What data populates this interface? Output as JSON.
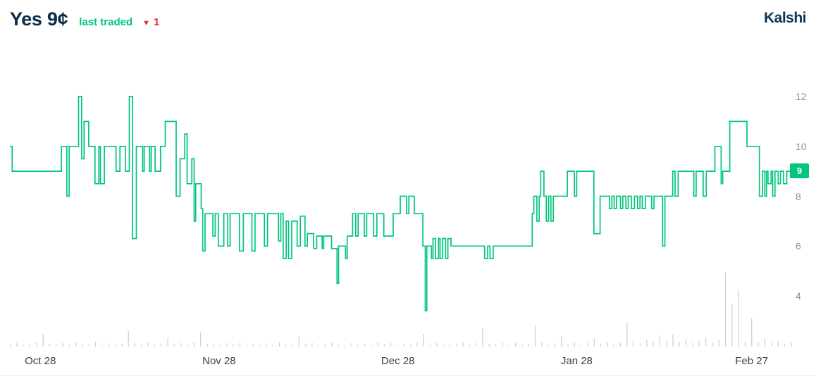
{
  "header": {
    "title": "Yes 9¢",
    "subtitle": "last traded",
    "change_icon": "▼",
    "change_value": "1",
    "logo": "Kalshi"
  },
  "colors": {
    "accent_green": "#00c57b",
    "title_navy": "#0b2b4b",
    "logo_navy": "#0a3650",
    "change_red": "#d92f2f",
    "volume_gray": "#cdd2d9",
    "y_tick_gray": "#8d939c",
    "x_tick_gray": "#3c4043",
    "divider_gray": "#e8eaed",
    "badge_text": "#ffffff"
  },
  "chart_data": {
    "type": "line",
    "style": "step",
    "unit": "cents",
    "series_name": "Yes price",
    "last_price": 9,
    "y_ticks": [
      12,
      10,
      8,
      6,
      4
    ],
    "y_range": [
      3,
      13
    ],
    "grid": "off",
    "legend": "none",
    "x_ticks": [
      {
        "t": 0.039,
        "label": "Oct 28"
      },
      {
        "t": 0.268,
        "label": "Nov 28"
      },
      {
        "t": 0.497,
        "label": "Dec 28"
      },
      {
        "t": 0.726,
        "label": "Jan 28"
      },
      {
        "t": 0.95,
        "label": "Feb 27"
      }
    ],
    "points": [
      [
        0.0,
        10
      ],
      [
        0.003,
        9
      ],
      [
        0.064,
        9
      ],
      [
        0.066,
        10
      ],
      [
        0.071,
        10
      ],
      [
        0.073,
        8
      ],
      [
        0.076,
        10
      ],
      [
        0.087,
        10
      ],
      [
        0.088,
        12
      ],
      [
        0.091,
        12
      ],
      [
        0.092,
        9.5
      ],
      [
        0.095,
        11
      ],
      [
        0.099,
        11
      ],
      [
        0.101,
        10
      ],
      [
        0.107,
        10
      ],
      [
        0.109,
        8.5
      ],
      [
        0.114,
        10
      ],
      [
        0.116,
        8.5
      ],
      [
        0.121,
        10
      ],
      [
        0.136,
        9
      ],
      [
        0.141,
        10
      ],
      [
        0.148,
        9
      ],
      [
        0.153,
        12
      ],
      [
        0.155,
        12
      ],
      [
        0.157,
        6.3
      ],
      [
        0.161,
        6.3
      ],
      [
        0.162,
        10
      ],
      [
        0.168,
        10
      ],
      [
        0.17,
        9
      ],
      [
        0.172,
        10
      ],
      [
        0.177,
        10
      ],
      [
        0.179,
        9
      ],
      [
        0.181,
        10
      ],
      [
        0.186,
        9
      ],
      [
        0.193,
        10
      ],
      [
        0.199,
        11
      ],
      [
        0.211,
        11
      ],
      [
        0.213,
        8
      ],
      [
        0.218,
        9.5
      ],
      [
        0.224,
        10.5
      ],
      [
        0.227,
        8.5
      ],
      [
        0.233,
        9.5
      ],
      [
        0.236,
        7
      ],
      [
        0.238,
        8.5
      ],
      [
        0.245,
        7.5
      ],
      [
        0.247,
        5.8
      ],
      [
        0.25,
        7.3
      ],
      [
        0.258,
        7.3
      ],
      [
        0.26,
        6.4
      ],
      [
        0.263,
        7.3
      ],
      [
        0.267,
        6
      ],
      [
        0.272,
        6
      ],
      [
        0.274,
        7.3
      ],
      [
        0.279,
        6
      ],
      [
        0.282,
        7.3
      ],
      [
        0.294,
        5.8
      ],
      [
        0.299,
        7.3
      ],
      [
        0.31,
        5.8
      ],
      [
        0.314,
        7.3
      ],
      [
        0.326,
        6
      ],
      [
        0.33,
        7.3
      ],
      [
        0.344,
        6.2
      ],
      [
        0.347,
        7.3
      ],
      [
        0.35,
        5.5
      ],
      [
        0.354,
        7
      ],
      [
        0.357,
        5.5
      ],
      [
        0.361,
        7
      ],
      [
        0.368,
        6
      ],
      [
        0.372,
        7.2
      ],
      [
        0.378,
        6
      ],
      [
        0.381,
        6.5
      ],
      [
        0.389,
        5.9
      ],
      [
        0.393,
        6.4
      ],
      [
        0.4,
        5.9
      ],
      [
        0.402,
        6.4
      ],
      [
        0.412,
        5.9
      ],
      [
        0.419,
        4.5
      ],
      [
        0.421,
        6
      ],
      [
        0.43,
        5.5
      ],
      [
        0.432,
        6.4
      ],
      [
        0.439,
        7.3
      ],
      [
        0.443,
        6.4
      ],
      [
        0.446,
        7.3
      ],
      [
        0.454,
        6.4
      ],
      [
        0.457,
        7.3
      ],
      [
        0.466,
        6.4
      ],
      [
        0.47,
        7.3
      ],
      [
        0.479,
        6.4
      ],
      [
        0.491,
        7.3
      ],
      [
        0.5,
        8
      ],
      [
        0.508,
        7.3
      ],
      [
        0.511,
        8
      ],
      [
        0.518,
        7.3
      ],
      [
        0.529,
        6
      ],
      [
        0.532,
        3.4
      ],
      [
        0.534,
        6
      ],
      [
        0.54,
        5.5
      ],
      [
        0.542,
        6.3
      ],
      [
        0.545,
        5.5
      ],
      [
        0.549,
        6.3
      ],
      [
        0.551,
        5.5
      ],
      [
        0.554,
        6.3
      ],
      [
        0.558,
        5.5
      ],
      [
        0.561,
        6.3
      ],
      [
        0.565,
        6
      ],
      [
        0.608,
        5.5
      ],
      [
        0.612,
        6
      ],
      [
        0.615,
        5.5
      ],
      [
        0.619,
        6
      ],
      [
        0.669,
        7.3
      ],
      [
        0.671,
        8
      ],
      [
        0.675,
        7
      ],
      [
        0.678,
        8
      ],
      [
        0.68,
        9
      ],
      [
        0.684,
        8
      ],
      [
        0.687,
        7
      ],
      [
        0.69,
        8
      ],
      [
        0.693,
        7
      ],
      [
        0.696,
        8
      ],
      [
        0.712,
        8
      ],
      [
        0.714,
        9
      ],
      [
        0.723,
        8
      ],
      [
        0.726,
        9
      ],
      [
        0.745,
        9
      ],
      [
        0.748,
        6.5
      ],
      [
        0.756,
        8
      ],
      [
        0.763,
        8
      ],
      [
        0.768,
        7.5
      ],
      [
        0.771,
        8
      ],
      [
        0.774,
        7.5
      ],
      [
        0.777,
        8
      ],
      [
        0.782,
        7.5
      ],
      [
        0.785,
        8
      ],
      [
        0.789,
        7.5
      ],
      [
        0.792,
        8
      ],
      [
        0.796,
        7.5
      ],
      [
        0.8,
        8
      ],
      [
        0.804,
        7.5
      ],
      [
        0.807,
        8
      ],
      [
        0.81,
        7.5
      ],
      [
        0.814,
        8
      ],
      [
        0.822,
        7.5
      ],
      [
        0.825,
        8
      ],
      [
        0.831,
        8
      ],
      [
        0.836,
        6
      ],
      [
        0.839,
        8
      ],
      [
        0.849,
        9
      ],
      [
        0.852,
        8
      ],
      [
        0.856,
        9
      ],
      [
        0.876,
        8
      ],
      [
        0.879,
        9
      ],
      [
        0.888,
        8
      ],
      [
        0.892,
        9
      ],
      [
        0.901,
        9
      ],
      [
        0.903,
        10
      ],
      [
        0.91,
        10
      ],
      [
        0.911,
        8.5
      ],
      [
        0.913,
        9
      ],
      [
        0.919,
        9
      ],
      [
        0.922,
        11
      ],
      [
        0.942,
        11
      ],
      [
        0.944,
        10
      ],
      [
        0.957,
        10
      ],
      [
        0.96,
        8
      ],
      [
        0.964,
        9
      ],
      [
        0.967,
        8
      ],
      [
        0.969,
        9
      ],
      [
        0.971,
        8.5
      ],
      [
        0.975,
        9
      ],
      [
        0.977,
        8
      ],
      [
        0.98,
        9
      ],
      [
        0.984,
        8.5
      ],
      [
        0.987,
        9
      ],
      [
        0.991,
        8.5
      ],
      [
        0.995,
        9
      ],
      [
        1.0,
        9
      ]
    ],
    "volume_bars": [
      3,
      5,
      2,
      4,
      6,
      18,
      4,
      3,
      5,
      2,
      6,
      4,
      3,
      7,
      2,
      5,
      3,
      4,
      22,
      5,
      3,
      6,
      2,
      4,
      12,
      3,
      5,
      2,
      6,
      20,
      4,
      3,
      2,
      5,
      3,
      6,
      2,
      4,
      3,
      5,
      2,
      6,
      3,
      4,
      15,
      3,
      5,
      2,
      4,
      6,
      3,
      2,
      5,
      3,
      4,
      2,
      6,
      3,
      5,
      2,
      4,
      3,
      6,
      18,
      3,
      5,
      2,
      4,
      3,
      6,
      2,
      5,
      26,
      4,
      3,
      6,
      2,
      5,
      3,
      4,
      30,
      6,
      3,
      5,
      15,
      3,
      6,
      2,
      5,
      12,
      4,
      6,
      3,
      5,
      34,
      8,
      5,
      10,
      6,
      16,
      8,
      18,
      6,
      10,
      5,
      8,
      12,
      6,
      9,
      105,
      60,
      80,
      7,
      40,
      6,
      12,
      5,
      8,
      4,
      6
    ]
  }
}
